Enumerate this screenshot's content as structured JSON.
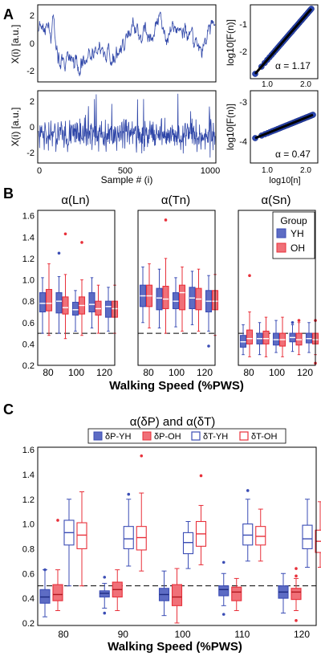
{
  "colors": {
    "yh": "#3b4db5",
    "oh": "#e8303a",
    "trace": "#2f46a8",
    "axis": "#000000",
    "dashed": "#000000"
  },
  "panels": {
    "A": {
      "label": "A",
      "ts_top": {
        "ylabel": "X(i)  [a.u.]",
        "yticks": [
          "2",
          "0",
          "-2"
        ],
        "ylim": [
          -2.8,
          2.6
        ]
      },
      "ts_bottom": {
        "ylabel": "X(i)  [a.u.]",
        "yticks": [
          "2",
          "0",
          "-2"
        ],
        "ylim": [
          -2.8,
          2.8
        ],
        "xticks": [
          "0",
          "500",
          "1000"
        ],
        "xlabel": "Sample # (i)"
      },
      "dfa_top": {
        "ylabel": "log10[F(n)]",
        "yticks": [
          "-1",
          "-2"
        ],
        "xticks": [
          "1.0",
          "2.0"
        ],
        "alpha_text": "α = 1.17",
        "slope": 1.17
      },
      "dfa_bottom": {
        "ylabel": "log10[F(n)]",
        "yticks": [
          "-3",
          "-4"
        ],
        "xticks": [
          "1.0",
          "2.0"
        ],
        "alpha_text": "α = 0.47",
        "xlabel": "log10[n]",
        "slope": 0.47
      }
    },
    "B": {
      "label": "B",
      "subplot_titles": [
        "α(Ln)",
        "α(Tn)",
        "α(Sn)"
      ],
      "yticks": [
        "1.6",
        "1.4",
        "1.2",
        "1.0",
        "0.8",
        "0.6",
        "0.4",
        "0.2"
      ],
      "xticks": [
        "80",
        "100",
        "120"
      ],
      "xlabel": "Walking Speed (%PWS)",
      "legend": {
        "title": "Group",
        "items": [
          "YH",
          "OH"
        ]
      }
    },
    "C": {
      "label": "C",
      "title": "α(δP) and α(δT)",
      "legend": [
        "δP-YH",
        "δP-OH",
        "δT-YH",
        "δT-OH"
      ],
      "yticks": [
        "1.6",
        "1.4",
        "1.2",
        "1.0",
        "0.8",
        "0.6",
        "0.4",
        "0.2"
      ],
      "xticks": [
        "80",
        "90",
        "100",
        "110",
        "120"
      ],
      "xlabel": "Walking Speed (%PWS)"
    }
  },
  "chart_data": [
    {
      "type": "box",
      "panel": "B",
      "title": "α(Ln)",
      "categories": [
        "80",
        "90",
        "100",
        "110",
        "120"
      ],
      "xlabel": "Walking Speed (%PWS)",
      "ylim": [
        0.2,
        1.65
      ],
      "reference_line": 0.5,
      "series": [
        {
          "name": "YH",
          "boxes": [
            [
              0.5,
              0.7,
              0.78,
              0.88,
              1.02
            ],
            [
              0.5,
              0.69,
              0.8,
              0.88,
              1.03
            ],
            [
              0.52,
              0.67,
              0.72,
              0.79,
              0.9
            ],
            [
              0.55,
              0.7,
              0.77,
              0.88,
              1.02
            ],
            [
              0.52,
              0.65,
              0.75,
              0.8,
              0.93
            ]
          ],
          "outliers": [
            [],
            [
              1.25
            ],
            [],
            [],
            []
          ]
        },
        {
          "name": "OH",
          "boxes": [
            [
              0.48,
              0.71,
              0.78,
              0.91,
              1.15
            ],
            [
              0.45,
              0.68,
              0.74,
              0.84,
              1.05
            ],
            [
              0.48,
              0.68,
              0.76,
              0.84,
              1.0
            ],
            [
              0.5,
              0.67,
              0.73,
              0.8,
              0.95
            ],
            [
              0.5,
              0.65,
              0.73,
              0.8,
              0.95
            ]
          ],
          "outliers": [
            [],
            [
              1.43
            ],
            [
              1.35
            ],
            [],
            []
          ]
        }
      ]
    },
    {
      "type": "box",
      "panel": "B",
      "title": "α(Tn)",
      "categories": [
        "80",
        "90",
        "100",
        "110",
        "120"
      ],
      "xlabel": "Walking Speed (%PWS)",
      "ylim": [
        0.2,
        1.65
      ],
      "reference_line": 0.5,
      "series": [
        {
          "name": "YH",
          "boxes": [
            [
              0.6,
              0.75,
              0.85,
              0.95,
              1.12
            ],
            [
              0.55,
              0.72,
              0.83,
              0.92,
              1.1
            ],
            [
              0.56,
              0.73,
              0.8,
              0.88,
              1.02
            ],
            [
              0.58,
              0.73,
              0.83,
              0.93,
              1.08
            ],
            [
              0.52,
              0.7,
              0.8,
              0.9,
              1.04
            ]
          ],
          "outliers": [
            [],
            [],
            [],
            [],
            [
              0.38
            ]
          ]
        },
        {
          "name": "OH",
          "boxes": [
            [
              0.55,
              0.75,
              0.85,
              0.95,
              1.15
            ],
            [
              0.5,
              0.73,
              0.82,
              0.94,
              1.2
            ],
            [
              0.52,
              0.72,
              0.88,
              0.95,
              1.12
            ],
            [
              0.52,
              0.72,
              0.82,
              0.92,
              1.1
            ],
            [
              0.48,
              0.72,
              0.8,
              0.9,
              1.05
            ]
          ],
          "outliers": [
            [],
            [
              1.56
            ],
            [],
            [],
            []
          ]
        }
      ]
    },
    {
      "type": "box",
      "panel": "B",
      "title": "α(Sn)",
      "categories": [
        "80",
        "90",
        "100",
        "110",
        "120"
      ],
      "xlabel": "Walking Speed (%PWS)",
      "ylim": [
        0.2,
        1.65
      ],
      "reference_line": 0.5,
      "series": [
        {
          "name": "YH",
          "boxes": [
            [
              0.3,
              0.37,
              0.42,
              0.48,
              0.58
            ],
            [
              0.3,
              0.4,
              0.45,
              0.5,
              0.6
            ],
            [
              0.32,
              0.39,
              0.44,
              0.5,
              0.62
            ],
            [
              0.33,
              0.42,
              0.46,
              0.5,
              0.58
            ],
            [
              0.32,
              0.41,
              0.45,
              0.5,
              0.6
            ]
          ],
          "outliers": [
            [],
            [],
            [],
            [
              0.6
            ],
            []
          ]
        },
        {
          "name": "OH",
          "boxes": [
            [
              0.28,
              0.4,
              0.45,
              0.53,
              0.7
            ],
            [
              0.28,
              0.4,
              0.45,
              0.52,
              0.65
            ],
            [
              0.28,
              0.38,
              0.44,
              0.5,
              0.65
            ],
            [
              0.3,
              0.39,
              0.44,
              0.5,
              0.6
            ],
            [
              0.3,
              0.4,
              0.44,
              0.5,
              0.62
            ]
          ],
          "outliers": [
            [
              1.04
            ],
            [],
            [],
            [
              0.62
            ],
            [
              0.62,
              0.22
            ]
          ]
        }
      ]
    },
    {
      "type": "box",
      "panel": "C",
      "title": "α(δP) and α(δT)",
      "categories": [
        "80",
        "90",
        "100",
        "110",
        "120"
      ],
      "xlabel": "Walking Speed (%PWS)",
      "ylim": [
        0.18,
        1.62
      ],
      "reference_line": 0.5,
      "series": [
        {
          "name": "δP-YH",
          "filled": true,
          "boxes": [
            [
              0.25,
              0.36,
              0.41,
              0.47,
              0.63
            ],
            [
              0.32,
              0.41,
              0.44,
              0.46,
              0.52
            ],
            [
              0.26,
              0.38,
              0.43,
              0.48,
              0.62
            ],
            [
              0.34,
              0.42,
              0.47,
              0.5,
              0.6
            ],
            [
              0.28,
              0.4,
              0.45,
              0.5,
              0.6
            ]
          ],
          "outliers": [
            [
              0.63
            ],
            [
              0.28,
              0.57
            ],
            [],
            [
              0.27,
              0.69
            ],
            []
          ]
        },
        {
          "name": "δP-OH",
          "filled": true,
          "boxes": [
            [
              0.3,
              0.38,
              0.43,
              0.51,
              0.63
            ],
            [
              0.3,
              0.41,
              0.47,
              0.53,
              0.63
            ],
            [
              0.2,
              0.34,
              0.41,
              0.51,
              0.64
            ],
            [
              0.3,
              0.38,
              0.45,
              0.49,
              0.56
            ],
            [
              0.3,
              0.39,
              0.45,
              0.48,
              0.56
            ]
          ],
          "outliers": [
            [
              1.03
            ],
            [],
            [],
            [],
            [
              0.58,
              0.64,
              0.22
            ]
          ]
        },
        {
          "name": "δT-YH",
          "filled": false,
          "boxes": [
            [
              0.5,
              0.83,
              0.93,
              1.03,
              1.2
            ],
            [
              0.66,
              0.8,
              0.88,
              0.98,
              1.2
            ],
            [
              0.64,
              0.76,
              0.85,
              0.93,
              1.02
            ],
            [
              0.7,
              0.83,
              0.91,
              1.0,
              1.2
            ],
            [
              0.65,
              0.8,
              0.88,
              0.99,
              1.2
            ]
          ],
          "outliers": [
            [],
            [
              1.24
            ],
            [],
            [
              1.27
            ],
            []
          ]
        },
        {
          "name": "δT-OH",
          "filled": false,
          "boxes": [
            [
              0.5,
              0.8,
              0.91,
              1.01,
              1.26
            ],
            [
              0.62,
              0.79,
              0.89,
              0.98,
              1.25
            ],
            [
              0.67,
              0.82,
              0.92,
              1.02,
              1.15
            ],
            [
              0.7,
              0.83,
              0.9,
              0.98,
              1.12
            ],
            [
              0.65,
              0.77,
              0.86,
              0.95,
              1.18
            ]
          ],
          "outliers": [
            [],
            [
              1.55
            ],
            [
              1.39
            ],
            [],
            []
          ]
        }
      ]
    }
  ]
}
